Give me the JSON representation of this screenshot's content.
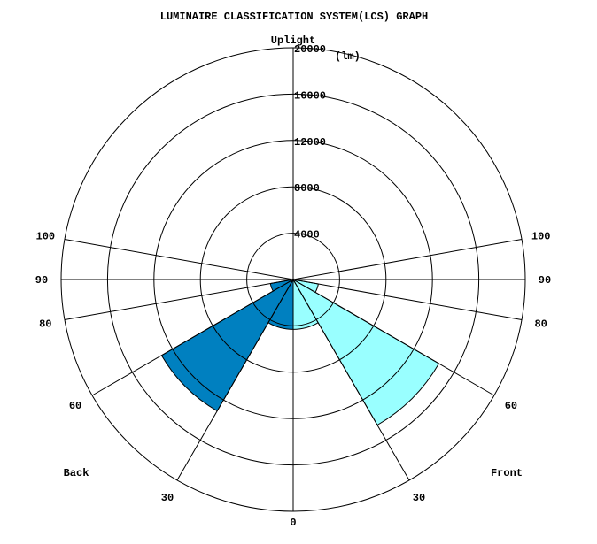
{
  "chart_data": {
    "type": "polar-wedge",
    "title": "LUMINAIRE CLASSIFICATION SYSTEM(LCS) GRAPH",
    "top_label": "Uplight",
    "unit": "(lm)",
    "radial_max": 20000,
    "rings": [
      4000,
      8000,
      12000,
      16000,
      20000
    ],
    "ring_labels": [
      "4000",
      "8000",
      "12000",
      "16000",
      "20000"
    ],
    "angle_ticks": [
      {
        "angle": 0,
        "label": "0",
        "side": "center"
      },
      {
        "angle": 30,
        "label": "30",
        "side": "back"
      },
      {
        "angle": 30,
        "label": "30",
        "side": "front"
      },
      {
        "angle": 60,
        "label": "60",
        "side": "back"
      },
      {
        "angle": 60,
        "label": "60",
        "side": "front"
      },
      {
        "angle": 80,
        "label": "80",
        "side": "back"
      },
      {
        "angle": 80,
        "label": "80",
        "side": "front"
      },
      {
        "angle": 90,
        "label": "90",
        "side": "back"
      },
      {
        "angle": 90,
        "label": "90",
        "side": "front"
      },
      {
        "angle": 100,
        "label": "100",
        "side": "back"
      },
      {
        "angle": 100,
        "label": "100",
        "side": "front"
      }
    ],
    "side_labels": {
      "back": "Back",
      "front": "Front"
    },
    "zones": [
      {
        "side": "back",
        "from": 0,
        "to": 30,
        "value": 4300,
        "color": "#0080C0"
      },
      {
        "side": "back",
        "from": 30,
        "to": 60,
        "value": 13100,
        "color": "#0080C0"
      },
      {
        "side": "back",
        "from": 60,
        "to": 80,
        "value": 2000,
        "color": "#0080C0"
      },
      {
        "side": "front",
        "from": 0,
        "to": 30,
        "value": 4300,
        "color": "#99FFFF"
      },
      {
        "side": "front",
        "from": 30,
        "to": 60,
        "value": 14500,
        "color": "#99FFFF"
      },
      {
        "side": "front",
        "from": 60,
        "to": 80,
        "value": 2200,
        "color": "#99FFFF"
      }
    ],
    "colors": {
      "back": "#0080C0",
      "front": "#99FFFF",
      "lines": "#000000"
    },
    "grid": true
  }
}
